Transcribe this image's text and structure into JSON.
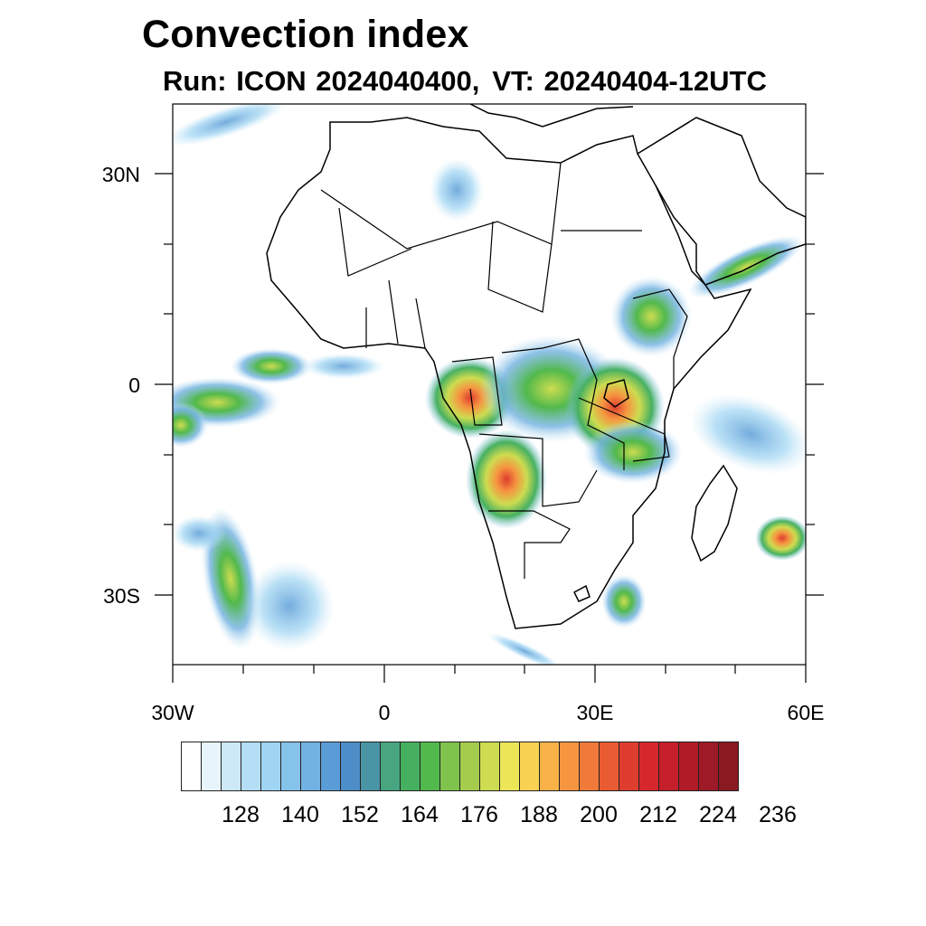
{
  "title": "Convection index",
  "subtitle": {
    "run": "Run: ICON 2024040400,",
    "vt": "VT: 20240404-12UTC"
  },
  "axes": {
    "lon_labels": [
      "30W",
      "0",
      "30E",
      "60E"
    ],
    "lat_labels": [
      "30N",
      "0",
      "30S"
    ],
    "lon_range": [
      -30,
      60
    ],
    "lat_range": [
      -40,
      40
    ]
  },
  "colorbar": {
    "colors": [
      "#ffffff",
      "#e8f4fb",
      "#cde9f7",
      "#b4def5",
      "#9fd5f3",
      "#86c3ea",
      "#72b2e2",
      "#5a9dd6",
      "#4d8ec8",
      "#4a95a5",
      "#47a580",
      "#46b061",
      "#52b94c",
      "#7fc24c",
      "#a5cc4d",
      "#cddc50",
      "#ece558",
      "#f9d153",
      "#f8b247",
      "#f69540",
      "#f07a39",
      "#e95c33",
      "#df3d2f",
      "#d6282c",
      "#c51f2b",
      "#b01b28",
      "#9e1a26",
      "#8a1a22"
    ],
    "labels": [
      "128",
      "140",
      "152",
      "164",
      "176",
      "188",
      "200",
      "212",
      "224",
      "236"
    ]
  },
  "icons": {
    "north_arrow": "none"
  }
}
